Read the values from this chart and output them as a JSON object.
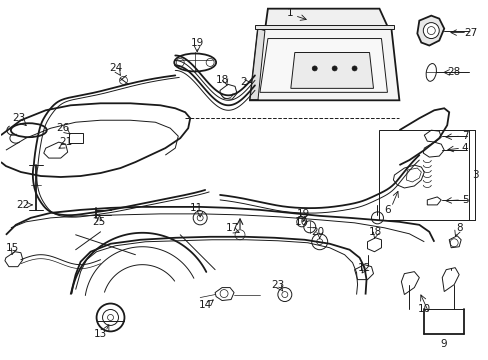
{
  "bg_color": "#ffffff",
  "line_color": "#1a1a1a",
  "fig_width": 4.89,
  "fig_height": 3.6,
  "dpi": 100,
  "font_size": 7.5,
  "lw_main": 1.3,
  "lw_thin": 0.7,
  "lw_thick": 1.8
}
